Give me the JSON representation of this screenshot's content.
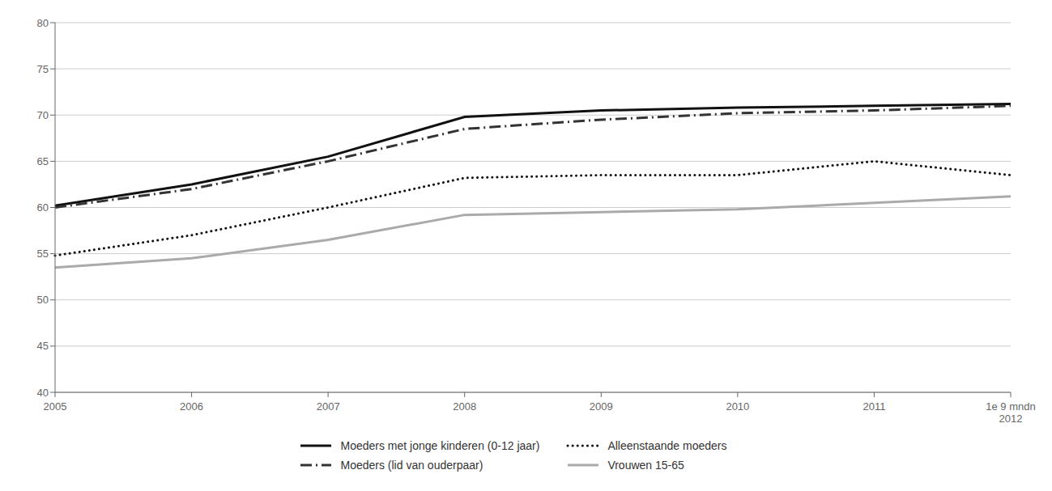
{
  "chart_data": {
    "type": "line",
    "categories": [
      "2005",
      "2006",
      "2007",
      "2008",
      "2009",
      "2010",
      "2011",
      "1e 9 mndn\n2012"
    ],
    "series": [
      {
        "name": "Moeders met jonge kinderen (0-12 jaar)",
        "color": "#111111",
        "line_style": "solid",
        "values": [
          60.2,
          62.5,
          65.5,
          69.8,
          70.5,
          70.8,
          71.0,
          71.2
        ]
      },
      {
        "name": "Alleenstaande moeders",
        "color": "#111111",
        "line_style": "dotted",
        "values": [
          54.8,
          57.0,
          60.0,
          63.2,
          63.5,
          63.5,
          65.0,
          63.5
        ]
      },
      {
        "name": "Moeders (lid van ouderpaar)",
        "color": "#333333",
        "line_style": "dashdot",
        "values": [
          60.0,
          62.0,
          65.0,
          68.5,
          69.5,
          70.2,
          70.5,
          71.0
        ]
      },
      {
        "name": "Vrouwen 15-65",
        "color": "#aaaaaa",
        "line_style": "solid",
        "values": [
          53.5,
          54.5,
          56.5,
          59.2,
          59.5,
          59.8,
          60.5,
          61.2
        ]
      }
    ],
    "ylim": [
      40,
      80
    ],
    "yticks": [
      40,
      45,
      50,
      55,
      60,
      65,
      70,
      75,
      80
    ],
    "grid": true,
    "legend": "bottom"
  }
}
